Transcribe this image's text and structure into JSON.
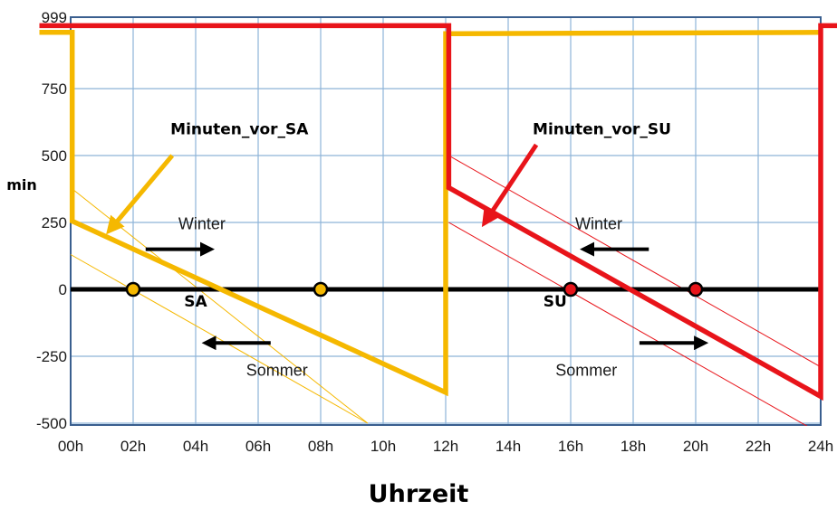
{
  "chart_data": {
    "type": "line",
    "xlabel": "Uhrzeit",
    "ylabel": "min",
    "x_ticks": [
      "00h",
      "02h",
      "04h",
      "06h",
      "08h",
      "10h",
      "12h",
      "14h",
      "16h",
      "18h",
      "20h",
      "22h",
      "24h"
    ],
    "y_ticks": [
      "-500",
      "-250",
      "0",
      "250",
      "500",
      "750",
      "999"
    ],
    "xlim": [
      0,
      24
    ],
    "ylim": [
      -500,
      999
    ],
    "grid": true,
    "colors": {
      "sa": "#f5b800",
      "su": "#e8141a",
      "grid": "#8eb4d8",
      "frame": "#3a5f8f",
      "zero": "#000000"
    },
    "series": [
      {
        "name": "Minuten_vor_SA",
        "color": "#f5b800",
        "points": [
          [
            -1,
            960
          ],
          [
            0.05,
            960
          ],
          [
            0.05,
            255
          ],
          [
            12,
            -385
          ],
          [
            12,
            955
          ],
          [
            24,
            960
          ]
        ]
      },
      {
        "name": "Minuten_vor_SU",
        "color": "#e8141a",
        "points": [
          [
            -1,
            985
          ],
          [
            12.1,
            985
          ],
          [
            12.1,
            380
          ],
          [
            24,
            -400
          ],
          [
            24,
            985
          ],
          [
            25,
            985
          ]
        ]
      }
    ],
    "season_lines": [
      {
        "color": "#f5b800",
        "points": [
          [
            0,
            380
          ],
          [
            9.5,
            -500
          ]
        ]
      },
      {
        "color": "#f5b800",
        "points": [
          [
            0,
            130
          ],
          [
            9.5,
            -500
          ]
        ]
      },
      {
        "color": "#e8141a",
        "points": [
          [
            12.1,
            500
          ],
          [
            24,
            -290
          ]
        ]
      },
      {
        "color": "#e8141a",
        "points": [
          [
            12.1,
            250
          ],
          [
            24,
            -540
          ]
        ]
      }
    ],
    "markers": [
      {
        "x": 2,
        "y": 0,
        "color": "#f5b800"
      },
      {
        "x": 8,
        "y": 0,
        "color": "#f5b800"
      },
      {
        "x": 16,
        "y": 0,
        "color": "#e8141a"
      },
      {
        "x": 20,
        "y": 0,
        "color": "#e8141a"
      }
    ],
    "annotations": [
      {
        "text": "Minuten_vor_SA",
        "x": 5.4,
        "y": 580,
        "color": "#000000"
      },
      {
        "text": "Minuten_vor_SU",
        "x": 17.0,
        "y": 580,
        "color": "#000000"
      },
      {
        "text": "Winter",
        "x": 4.2,
        "y": 225,
        "color": "#1a1a1a"
      },
      {
        "text": "Sommer",
        "x": 6.6,
        "y": -322,
        "color": "#1a1a1a"
      },
      {
        "text": "Winter",
        "x": 16.9,
        "y": 225,
        "color": "#1a1a1a"
      },
      {
        "text": "Sommer",
        "x": 16.5,
        "y": -322,
        "color": "#1a1a1a"
      },
      {
        "text": "SA",
        "x": 4.0,
        "y": -65,
        "color": "#000000"
      },
      {
        "text": "SU",
        "x": 15.5,
        "y": -65,
        "color": "#000000"
      }
    ],
    "arrows": [
      {
        "from": [
          2.4,
          150
        ],
        "to": [
          4.4,
          150
        ]
      },
      {
        "from": [
          6.4,
          -200
        ],
        "to": [
          4.4,
          -200
        ]
      },
      {
        "from": [
          18.5,
          150
        ],
        "to": [
          16.5,
          150
        ]
      },
      {
        "from": [
          18.2,
          -200
        ],
        "to": [
          20.2,
          -200
        ]
      }
    ],
    "pointer_arrows": [
      {
        "from": [
          3.25,
          500
        ],
        "to": [
          1.3,
          228
        ],
        "color": "#f5b800"
      },
      {
        "from": [
          14.9,
          540
        ],
        "to": [
          13.3,
          258
        ],
        "color": "#e8141a"
      }
    ]
  }
}
